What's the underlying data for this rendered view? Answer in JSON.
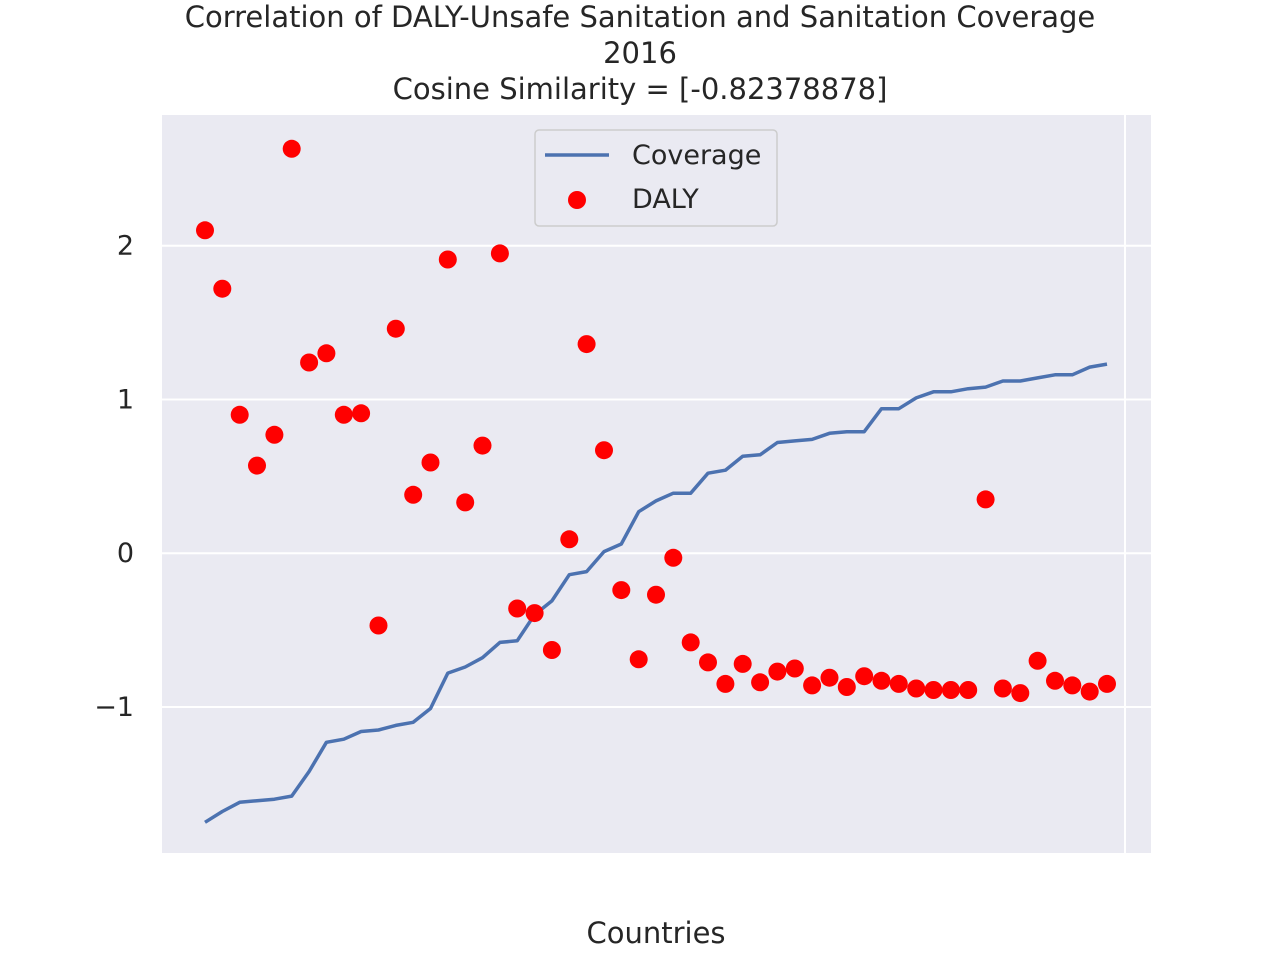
{
  "chart_data": {
    "type": "line+scatter",
    "title": "Correlation of DALY-Unsafe Sanitation and Sanitation Coverage",
    "subtitle": "2016",
    "annotation": "Cosine Similarity = [-0.82378878]",
    "xlabel": "Countries",
    "ylabel": "",
    "ylim": [
      -1.95,
      2.85
    ],
    "yticks": [
      -1,
      0,
      1,
      2
    ],
    "ytick_labels": [
      "−1",
      "0",
      "1",
      "2"
    ],
    "grid": true,
    "legend": "top-center",
    "series": [
      {
        "name": "Coverage",
        "kind": "line",
        "color": "#4c72b0",
        "values": [
          -1.75,
          -1.68,
          -1.62,
          -1.61,
          -1.6,
          -1.58,
          -1.42,
          -1.23,
          -1.21,
          -1.16,
          -1.15,
          -1.12,
          -1.1,
          -1.01,
          -0.78,
          -0.74,
          -0.68,
          -0.58,
          -0.57,
          -0.4,
          -0.31,
          -0.14,
          -0.12,
          0.01,
          0.06,
          0.27,
          0.34,
          0.39,
          0.39,
          0.52,
          0.54,
          0.63,
          0.64,
          0.72,
          0.73,
          0.74,
          0.78,
          0.79,
          0.79,
          0.94,
          0.94,
          1.01,
          1.05,
          1.05,
          1.07,
          1.08,
          1.12,
          1.12,
          1.14,
          1.16,
          1.16,
          1.21,
          1.23
        ]
      },
      {
        "name": "DALY",
        "kind": "scatter",
        "color": "#ff0000",
        "values": [
          2.1,
          1.72,
          0.9,
          0.57,
          0.77,
          2.63,
          1.24,
          1.3,
          0.9,
          0.91,
          -0.47,
          1.46,
          0.38,
          0.59,
          1.91,
          0.33,
          0.7,
          1.95,
          -0.36,
          -0.39,
          -0.63,
          0.09,
          1.36,
          0.67,
          -0.24,
          -0.69,
          -0.27,
          -0.03,
          -0.58,
          -0.71,
          -0.85,
          -0.72,
          -0.84,
          -0.77,
          -0.75,
          -0.86,
          -0.81,
          -0.87,
          -0.8,
          -0.83,
          -0.85,
          -0.88,
          -0.89,
          -0.89,
          -0.89,
          0.35,
          -0.88,
          -0.91,
          -0.7,
          -0.83,
          -0.86,
          -0.9,
          -0.85
        ]
      }
    ]
  }
}
